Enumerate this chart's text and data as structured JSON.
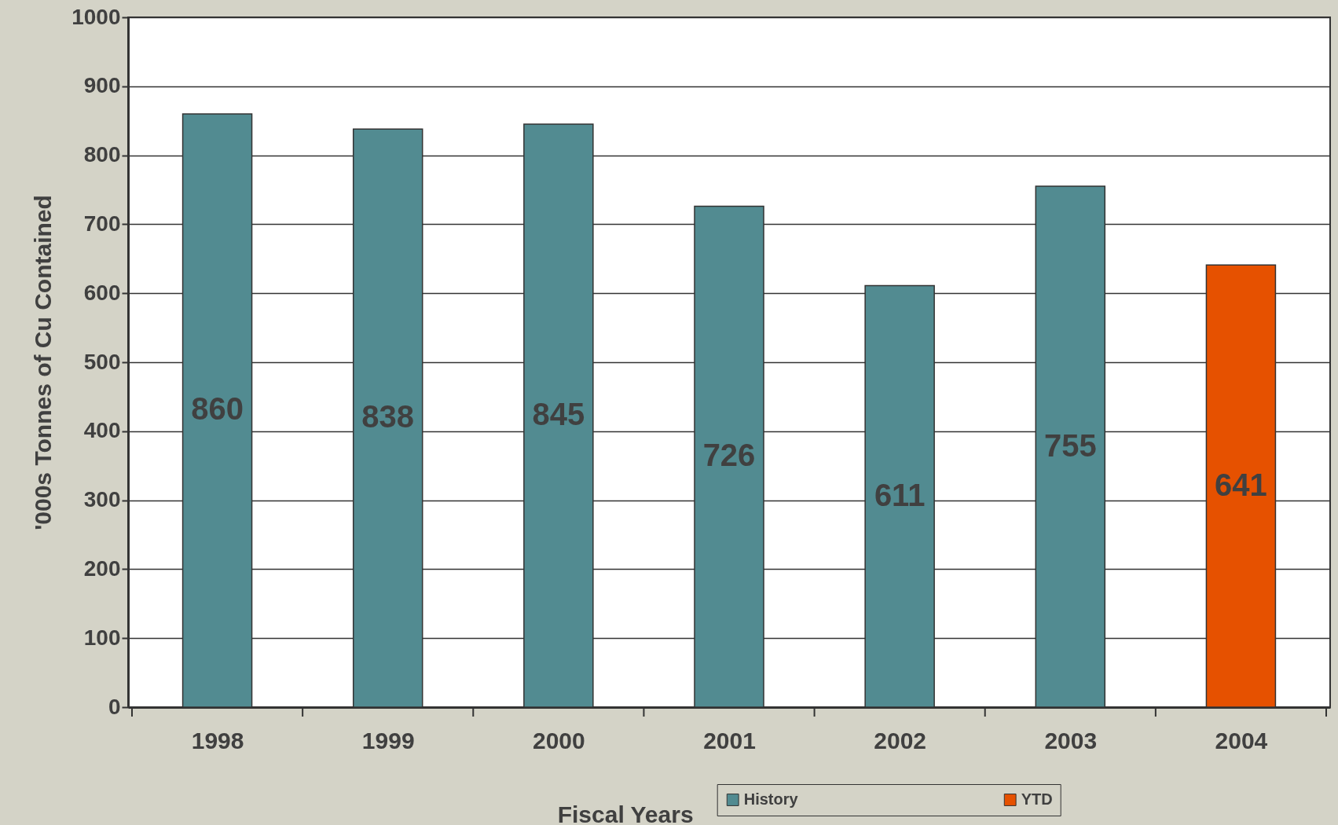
{
  "chart_data": {
    "type": "bar",
    "xlabel": "Fiscal Years",
    "ylabel": "'000s Tonnes of Cu Contained",
    "categories": [
      "1998",
      "1999",
      "2000",
      "2001",
      "2002",
      "2003",
      "2004"
    ],
    "series": [
      {
        "name": "History",
        "color": "#528b91",
        "values": [
          860,
          838,
          845,
          726,
          611,
          755,
          null
        ]
      },
      {
        "name": "YTD",
        "color": "#e65100",
        "values": [
          null,
          null,
          null,
          null,
          null,
          null,
          641
        ]
      }
    ],
    "ylim": [
      0,
      1000
    ],
    "yticks": [
      0,
      100,
      200,
      300,
      400,
      500,
      600,
      700,
      800,
      900,
      1000
    ],
    "grid": "y",
    "data_labels": true,
    "legend": "bottom right"
  }
}
